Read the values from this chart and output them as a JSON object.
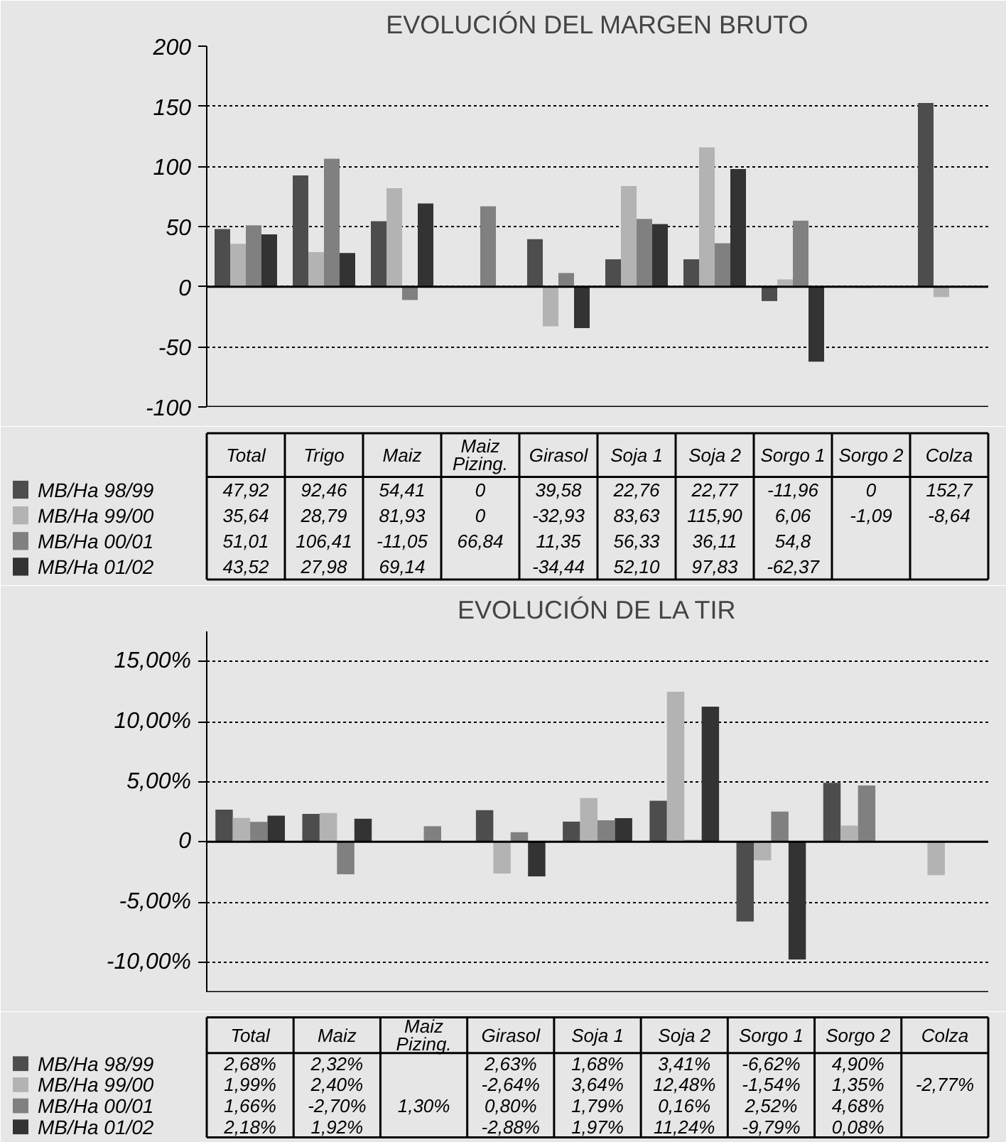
{
  "chart_data": [
    {
      "type": "bar",
      "title": "EVOLUCIÓN DEL MARGEN BRUTO",
      "categories": [
        "Total",
        "Trigo",
        "Maiz",
        "Maiz\nPizing.",
        "Girasol",
        "Soja 1",
        "Soja 2",
        "Sorgo 1",
        "Sorgo 2",
        "Colza"
      ],
      "ylim": [
        -100,
        200
      ],
      "yticks": [
        -100,
        -50,
        0,
        50,
        100,
        150,
        200
      ],
      "grid": "y",
      "legend": "bottom left",
      "ref_lines": [
        {
          "axis": "y",
          "value": 0,
          "color": "#000000"
        }
      ],
      "series": [
        {
          "name": "MB/Ha 98/99",
          "color": "#4d4d4d",
          "values": [
            47.92,
            92.46,
            54.41,
            0,
            39.58,
            22.76,
            22.77,
            -11.96,
            0,
            152.7
          ],
          "value_labels": [
            "47,92",
            "92,46",
            "54,41",
            "0",
            "39,58",
            "22,76",
            "22,77",
            "-11,96",
            "0",
            "152,7"
          ]
        },
        {
          "name": "MB/Ha 99/00",
          "color": "#b3b3b3",
          "values": [
            35.64,
            28.79,
            81.93,
            0,
            -32.93,
            83.63,
            115.9,
            6.06,
            -1.09,
            -8.64
          ],
          "value_labels": [
            "35,64",
            "28,79",
            "81,93",
            "0",
            "-32,93",
            "83,63",
            "115,90",
            "6,06",
            "-1,09",
            "-8,64"
          ]
        },
        {
          "name": "MB/Ha 00/01",
          "color": "#808080",
          "values": [
            51.01,
            106.41,
            -11.05,
            66.84,
            11.35,
            56.33,
            36.11,
            54.8,
            null,
            null
          ],
          "value_labels": [
            "51,01",
            "106,41",
            "-11,05",
            "66,84",
            "11,35",
            "56,33",
            "36,11",
            "54,8",
            null,
            null
          ]
        },
        {
          "name": "MB/Ha 01/02",
          "color": "#333333",
          "values": [
            43.52,
            27.98,
            69.14,
            null,
            -34.44,
            52.1,
            97.83,
            -62.37,
            null,
            null
          ],
          "value_labels": [
            "43,52",
            "27,98",
            "69,14",
            null,
            "-34,44",
            "52,10",
            "97,83",
            "-62,37",
            null,
            null
          ]
        }
      ]
    },
    {
      "type": "bar",
      "title": "EVOLUCIÓN DE LA TIR",
      "categories": [
        "Total",
        "Maiz",
        "Maiz\nPizing.",
        "Girasol",
        "Soja 1",
        "Soja 2",
        "Sorgo 1",
        "Sorgo 2",
        "Colza"
      ],
      "ylim": [
        -12.5,
        17.5
      ],
      "yticks": [
        {
          "value": -10,
          "label": "-10,00%"
        },
        {
          "value": -5,
          "label": "-5,00%"
        },
        {
          "value": 0,
          "label": "0"
        },
        {
          "value": 5,
          "label": "5,00%"
        },
        {
          "value": 10,
          "label": "10,00%"
        },
        {
          "value": 15,
          "label": "15,00%"
        }
      ],
      "grid": "y",
      "legend": "bottom left",
      "ref_lines": [
        {
          "axis": "y",
          "value": 0,
          "color": "#000000"
        }
      ],
      "series": [
        {
          "name": "MB/Ha 98/99",
          "color": "#4d4d4d",
          "values": [
            2.68,
            2.32,
            null,
            2.63,
            1.68,
            3.41,
            -6.62,
            4.9,
            null
          ],
          "value_labels": [
            "2,68%",
            "2,32%",
            null,
            "2,63%",
            "1,68%",
            "3,41%",
            "-6,62%",
            "4,90%",
            null
          ]
        },
        {
          "name": "MB/Ha 99/00",
          "color": "#b3b3b3",
          "values": [
            1.99,
            2.4,
            null,
            -2.64,
            3.64,
            12.48,
            -1.54,
            1.35,
            -2.77
          ],
          "value_labels": [
            "1,99%",
            "2,40%",
            null,
            "-2,64%",
            "3,64%",
            "12,48%",
            "-1,54%",
            "1,35%",
            "-2,77%"
          ]
        },
        {
          "name": "MB/Ha 00/01",
          "color": "#808080",
          "values": [
            1.66,
            -2.7,
            1.3,
            0.8,
            1.79,
            0.16,
            2.52,
            4.68,
            null
          ],
          "value_labels": [
            "1,66%",
            "-2,70%",
            "1,30%",
            "0,80%",
            "1,79%",
            "0,16%",
            "2,52%",
            "4,68%",
            null
          ]
        },
        {
          "name": "MB/Ha 01/02",
          "color": "#333333",
          "values": [
            2.18,
            1.92,
            null,
            -2.88,
            1.97,
            11.24,
            -9.79,
            0.08,
            null
          ],
          "value_labels": [
            "2,18%",
            "1,92%",
            null,
            "-2,88%",
            "1,97%",
            "11,24%",
            "-9,79%",
            "0,08%",
            null
          ]
        }
      ]
    }
  ]
}
